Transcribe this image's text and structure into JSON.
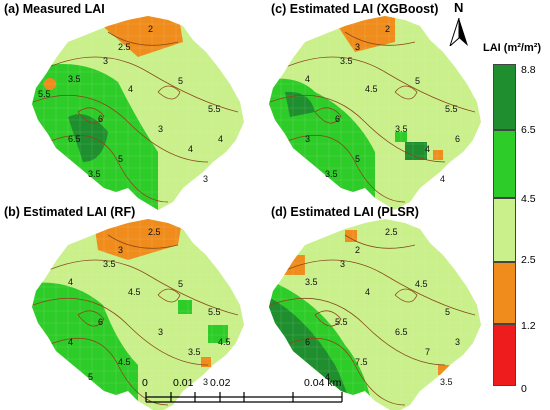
{
  "panels": [
    {
      "id": "a",
      "title": "(a) Measured LAI"
    },
    {
      "id": "b",
      "title": "(b) Estimated LAI (RF)"
    },
    {
      "id": "c",
      "title": "(c) Estimated LAI (XGBoost)"
    },
    {
      "id": "d",
      "title": "(d) Estimated LAI (PLSR)"
    }
  ],
  "legend": {
    "title": "LAI (m²/m²)",
    "ticks": [
      "8.8",
      "6.5",
      "4.5",
      "2.5",
      "1.2",
      "0"
    ],
    "classes": [
      {
        "range": "6.5-8.8",
        "color": "#1e8e2e"
      },
      {
        "range": "4.5-6.5",
        "color": "#2ecc28"
      },
      {
        "range": "2.5-4.5",
        "color": "#c9f08a"
      },
      {
        "range": "1.2-2.5",
        "color": "#f08c1c"
      },
      {
        "range": "0-1.2",
        "color": "#ee1c1c"
      }
    ]
  },
  "north_label": "N",
  "scale_bar": {
    "labels": [
      "0",
      "0.01",
      "0.02",
      "0.04 km"
    ]
  },
  "contour_labels": {
    "a": [
      "2",
      "2.5",
      "3",
      "3.5",
      "4",
      "5",
      "5.5",
      "6",
      "6.5",
      "3",
      "4",
      "5",
      "3.5",
      "3",
      "4",
      "5.5"
    ],
    "b": [
      "2.5",
      "3",
      "3.5",
      "4",
      "4.5",
      "5",
      "5.5",
      "6",
      "4",
      "3",
      "3.5",
      "4.5",
      "5",
      "3",
      "4.5"
    ],
    "c": [
      "2",
      "3",
      "3.5",
      "4",
      "4.5",
      "5",
      "5.5",
      "6",
      "3",
      "3.5",
      "4",
      "5",
      "3.5",
      "4",
      "6"
    ],
    "d": [
      "2.5",
      "2",
      "3",
      "3.5",
      "4",
      "4.5",
      "5",
      "5.5",
      "6",
      "6.5",
      "7",
      "7.5",
      "4",
      "3.5",
      "3"
    ]
  }
}
